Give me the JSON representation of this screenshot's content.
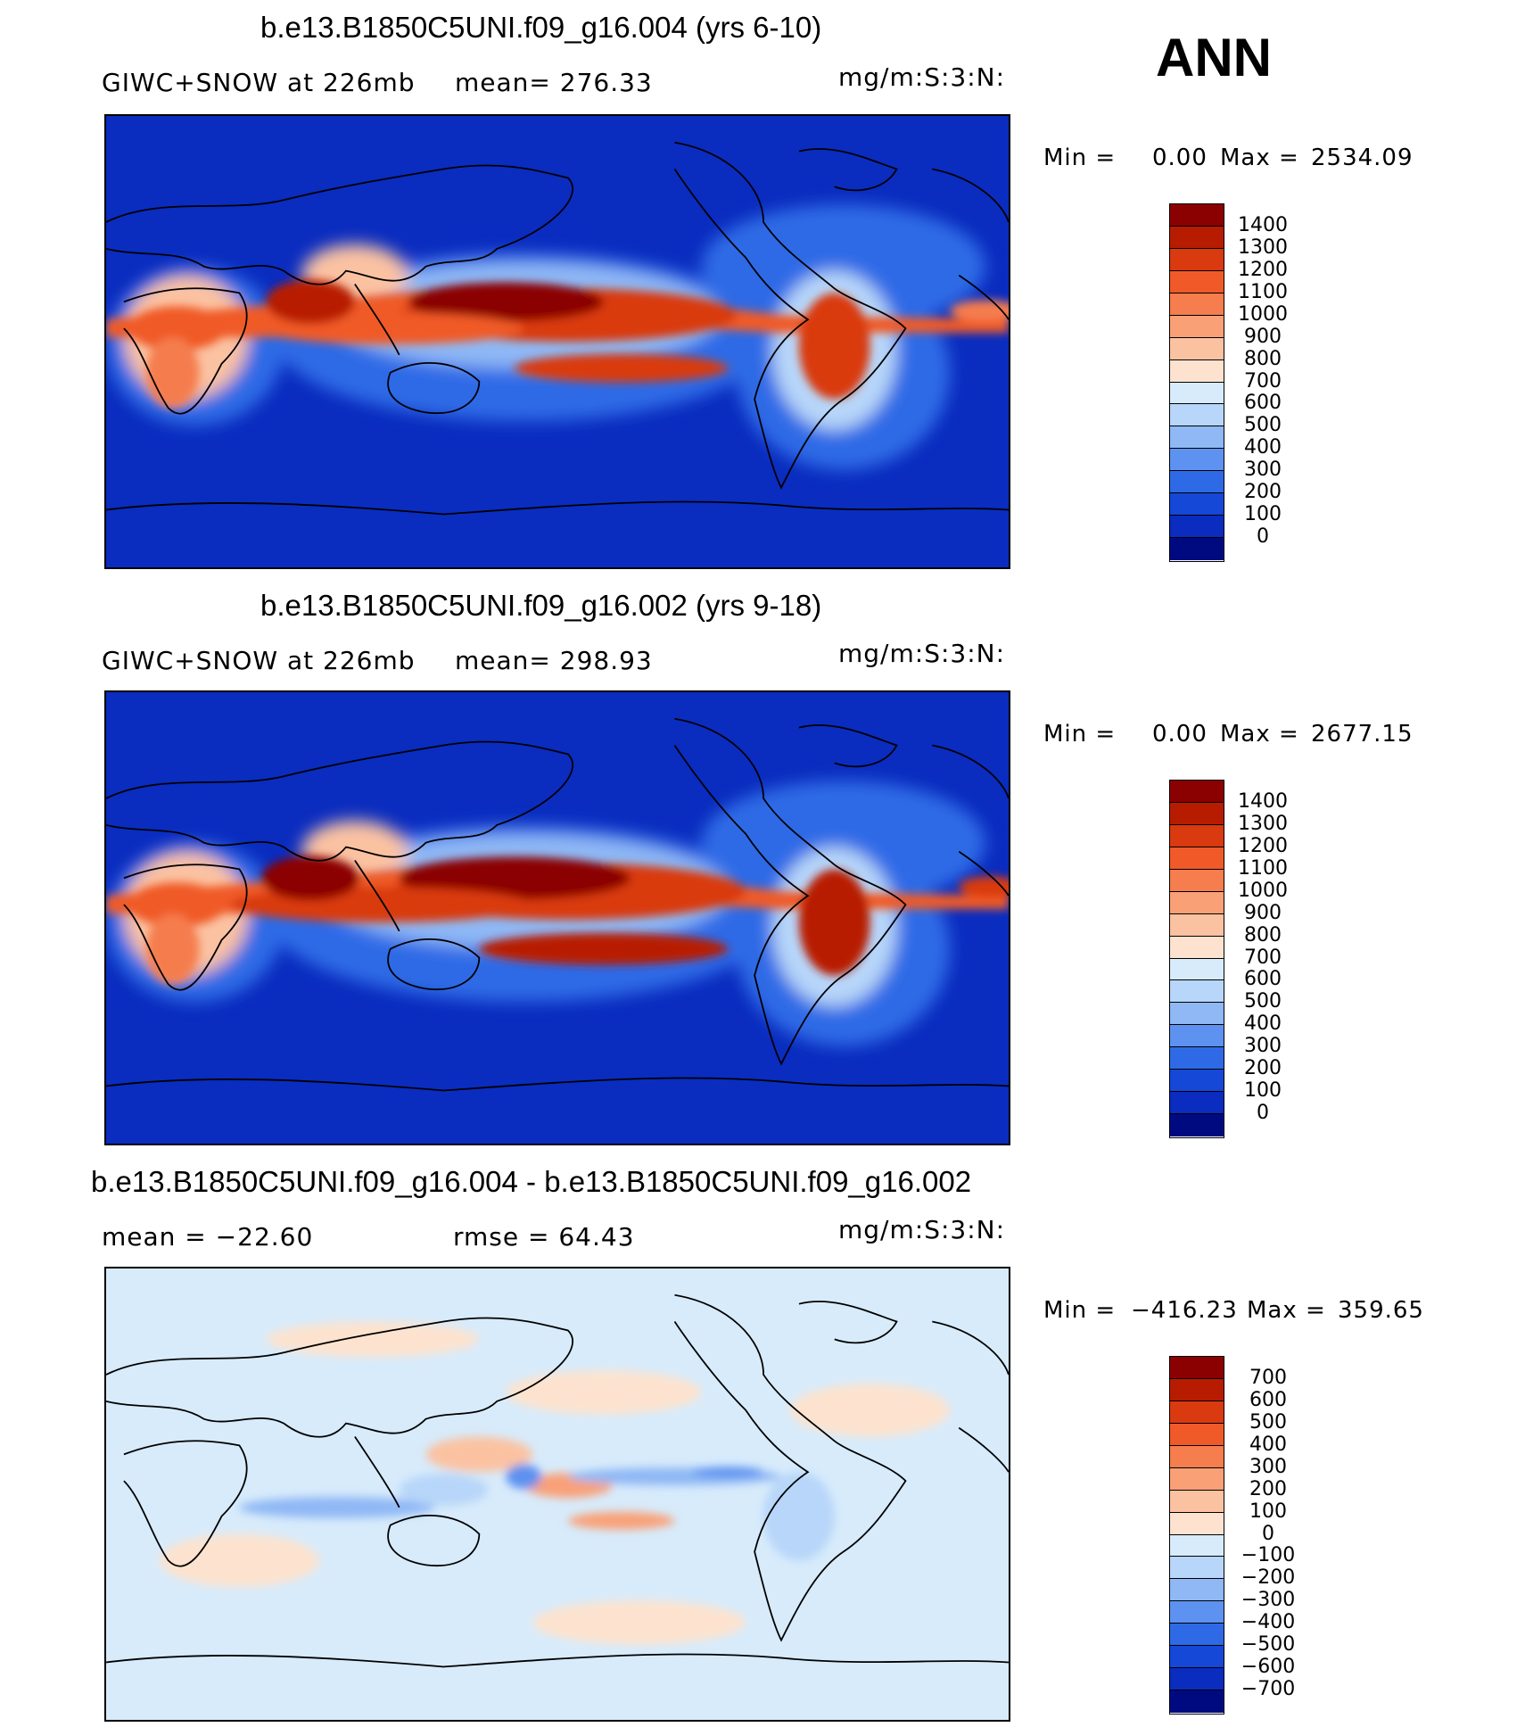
{
  "season": "ANN",
  "panels": [
    {
      "title": "b.e13.B1850C5UNI.f09_g16.004 (yrs 6-10)",
      "left_label": "GIWC+SNOW at 226mb",
      "mid_label": "mean= 276.33",
      "units": "mg/m:S:3:N:",
      "min_label": "Min =",
      "min_value": "0.00",
      "max_label": "Max =",
      "max_value": "2534.09"
    },
    {
      "title": "b.e13.B1850C5UNI.f09_g16.002 (yrs 9-18)",
      "left_label": "GIWC+SNOW at 226mb",
      "mid_label": "mean= 298.93",
      "units": "mg/m:S:3:N:",
      "min_label": "Min =",
      "min_value": "0.00",
      "max_label": "Max =",
      "max_value": "2677.15"
    },
    {
      "title": "b.e13.B1850C5UNI.f09_g16.004 - b.e13.B1850C5UNI.f09_g16.002",
      "left_label": "mean = −22.60",
      "mid_label": "rmse = 64.43",
      "units": "mg/m:S:3:N:",
      "min_label": "Min =",
      "min_value": "−416.23",
      "max_label": "Max =",
      "max_value": "359.65"
    }
  ],
  "colorbars": {
    "absolute": {
      "labels": [
        "1400",
        "1300",
        "1200",
        "1100",
        "1000",
        "900",
        "800",
        "700",
        "600",
        "500",
        "400",
        "300",
        "200",
        "100",
        "0"
      ],
      "colors": [
        "#8b0000",
        "#b81c00",
        "#d93a10",
        "#f05a28",
        "#f57d4e",
        "#f9a077",
        "#fbc2a2",
        "#fde3cf",
        "#d7ebfb",
        "#b7d6f9",
        "#8fb8f5",
        "#5d92f0",
        "#2f6ae6",
        "#1548d6",
        "#0a2cbf",
        "#000a80"
      ]
    },
    "difference": {
      "labels": [
        "700",
        "600",
        "500",
        "400",
        "300",
        "200",
        "100",
        "0",
        "−100",
        "−200",
        "−300",
        "−400",
        "−500",
        "−600",
        "−700"
      ],
      "colors": [
        "#8b0000",
        "#b81c00",
        "#d93a10",
        "#f05a28",
        "#f57d4e",
        "#f9a077",
        "#fbc2a2",
        "#fde3cf",
        "#d7ebfb",
        "#b7d6f9",
        "#8fb8f5",
        "#5d92f0",
        "#2f6ae6",
        "#1548d6",
        "#0a2cbf",
        "#000a80"
      ]
    }
  },
  "map_colors": {
    "ocean_low": "#0a2cbf",
    "diff_background": "#d7ebfb"
  }
}
